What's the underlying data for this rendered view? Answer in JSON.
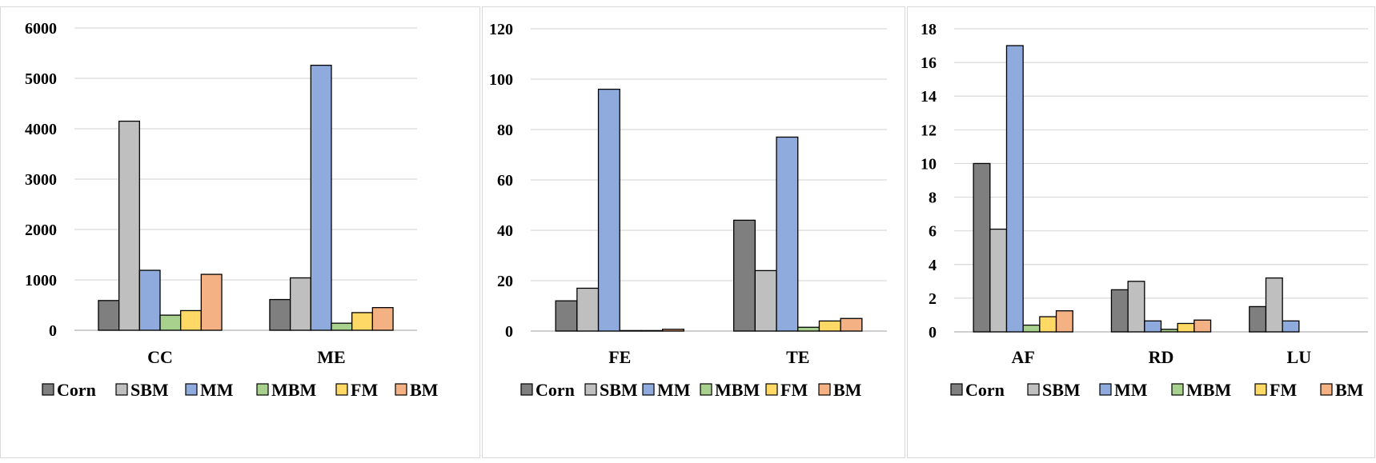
{
  "series_colors": {
    "Corn": "#7f7f7f",
    "SBM": "#bfbfbf",
    "MM": "#8faadc",
    "MBM": "#a9d18e",
    "FM": "#ffd966",
    "BM": "#f4b183"
  },
  "chart_data": [
    {
      "type": "bar",
      "title": "",
      "xlabel": "",
      "ylabel": "",
      "ylim": [
        0,
        6000
      ],
      "yticks": [
        0,
        1000,
        2000,
        3000,
        4000,
        5000,
        6000
      ],
      "categories": [
        "CC",
        "ME"
      ],
      "legend_position": "bottom",
      "grid": true,
      "series": [
        {
          "name": "Corn",
          "values": [
            590,
            610
          ]
        },
        {
          "name": "SBM",
          "values": [
            4150,
            1040
          ]
        },
        {
          "name": "MM",
          "values": [
            1190,
            5260
          ]
        },
        {
          "name": "MBM",
          "values": [
            300,
            140
          ]
        },
        {
          "name": "FM",
          "values": [
            390,
            350
          ]
        },
        {
          "name": "BM",
          "values": [
            1110,
            450
          ]
        }
      ]
    },
    {
      "type": "bar",
      "title": "",
      "xlabel": "",
      "ylabel": "",
      "ylim": [
        0,
        120
      ],
      "yticks": [
        0,
        20,
        40,
        60,
        80,
        100,
        120
      ],
      "categories": [
        "FE",
        "TE"
      ],
      "legend_position": "bottom",
      "grid": true,
      "series": [
        {
          "name": "Corn",
          "values": [
            12,
            44
          ]
        },
        {
          "name": "SBM",
          "values": [
            17,
            24
          ]
        },
        {
          "name": "MM",
          "values": [
            96,
            77
          ]
        },
        {
          "name": "MBM",
          "values": [
            0.2,
            1.5
          ]
        },
        {
          "name": "FM",
          "values": [
            0.2,
            4
          ]
        },
        {
          "name": "BM",
          "values": [
            0.7,
            5
          ]
        }
      ]
    },
    {
      "type": "bar",
      "title": "",
      "xlabel": "",
      "ylabel": "",
      "ylim": [
        0,
        18
      ],
      "yticks": [
        0,
        2,
        4,
        6,
        8,
        10,
        12,
        14,
        16,
        18
      ],
      "categories": [
        "AF",
        "RD",
        "LU"
      ],
      "legend_position": "bottom",
      "grid": true,
      "series": [
        {
          "name": "Corn",
          "values": [
            10,
            2.5,
            1.5
          ]
        },
        {
          "name": "SBM",
          "values": [
            6.1,
            3,
            3.2
          ]
        },
        {
          "name": "MM",
          "values": [
            17,
            0.65,
            0.65
          ]
        },
        {
          "name": "MBM",
          "values": [
            0.4,
            0.15,
            0
          ]
        },
        {
          "name": "FM",
          "values": [
            0.9,
            0.5,
            0
          ]
        },
        {
          "name": "BM",
          "values": [
            1.25,
            0.7,
            0
          ]
        }
      ]
    }
  ]
}
